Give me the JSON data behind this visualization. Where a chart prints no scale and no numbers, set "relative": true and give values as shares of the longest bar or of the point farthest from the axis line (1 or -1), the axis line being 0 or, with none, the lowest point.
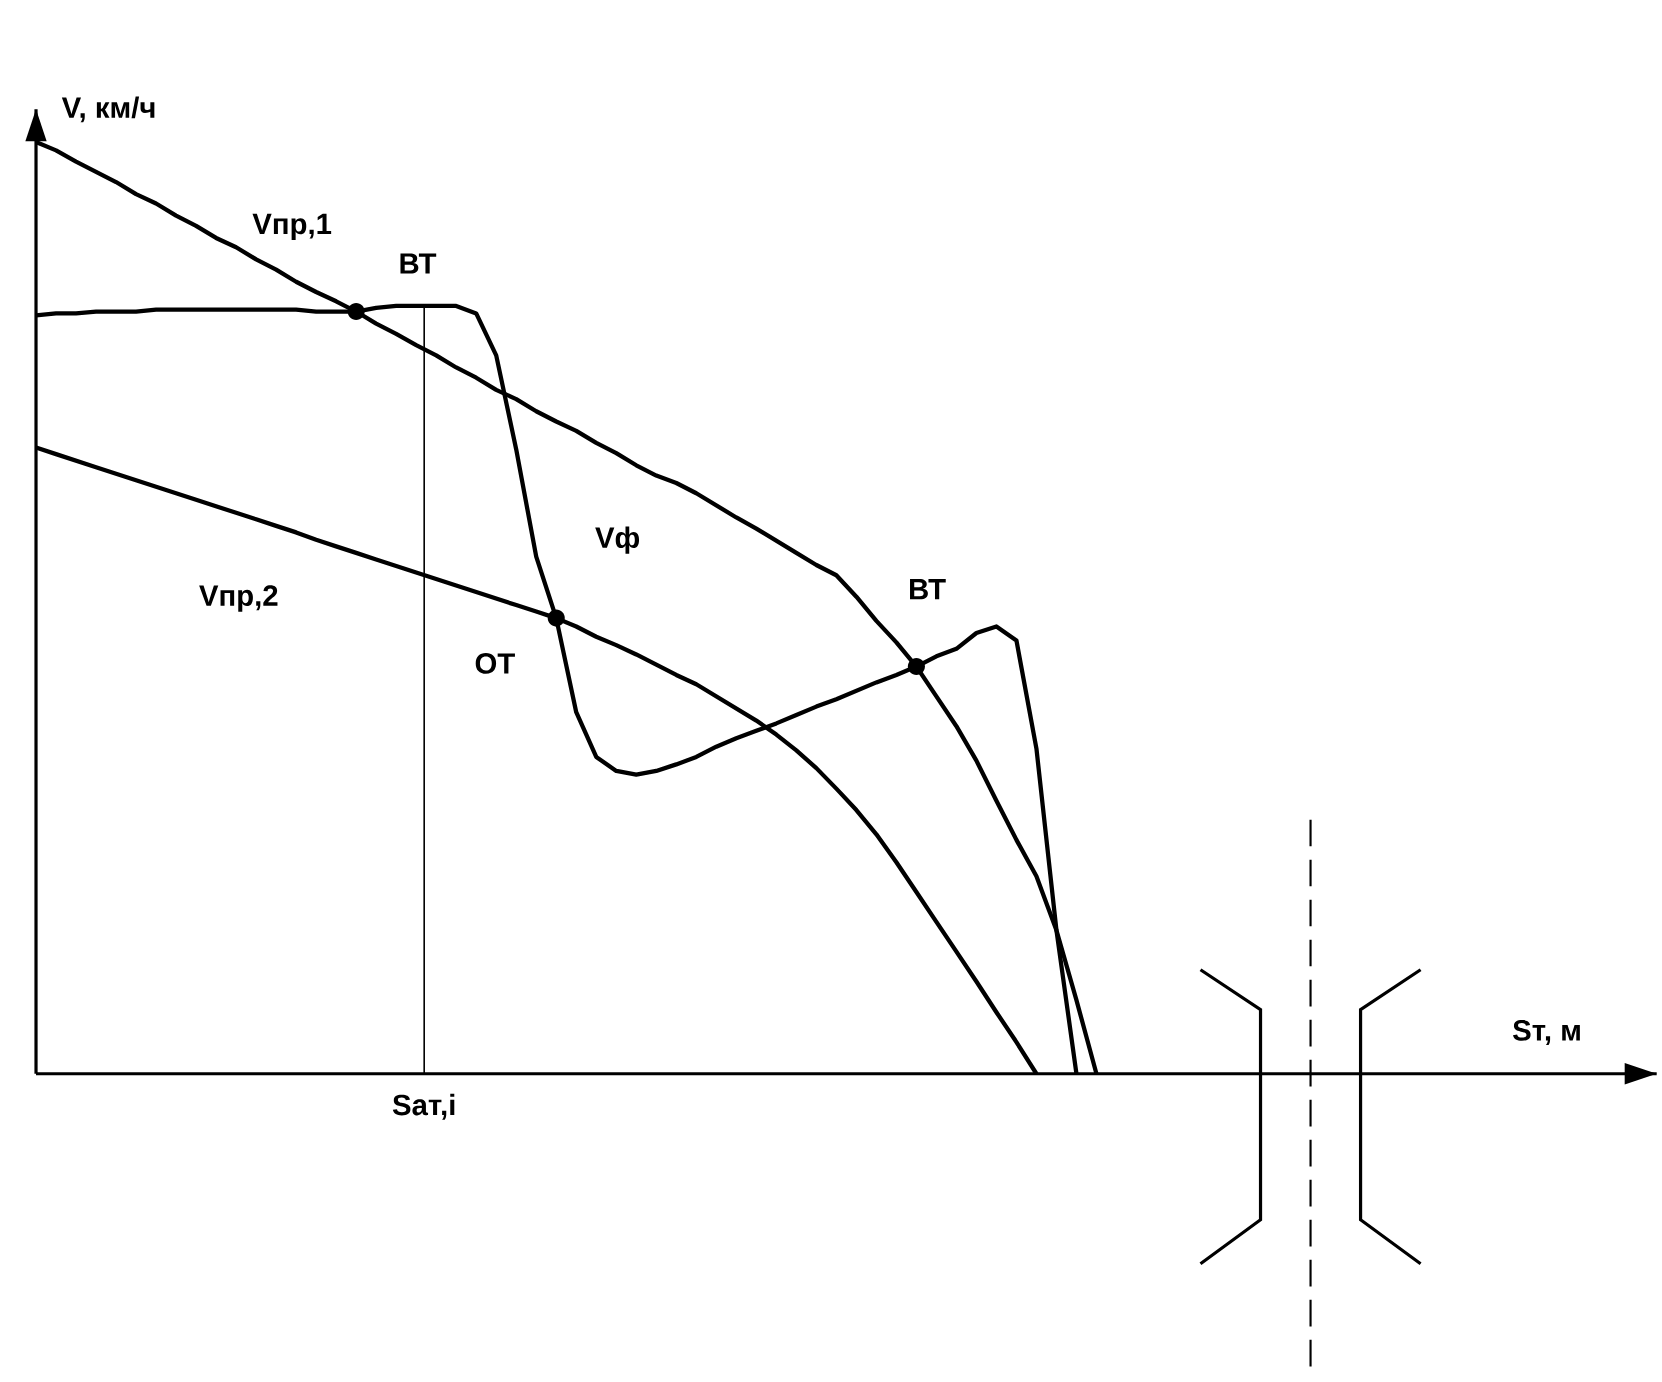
{
  "chart_data": {
    "type": "line",
    "relative": true,
    "xlabel": "Sт, м",
    "ylabel": "V, км/ч",
    "categories": [
      null,
      null,
      null,
      null,
      null,
      null,
      null,
      null,
      null,
      null,
      null,
      null,
      null,
      null,
      null,
      null,
      null,
      null,
      null,
      null,
      null,
      null,
      null,
      null,
      null,
      null,
      null,
      null,
      null,
      null,
      null,
      null,
      null,
      null,
      null,
      null,
      null,
      null,
      null,
      null,
      null,
      null,
      null,
      null,
      null,
      null,
      null,
      null,
      null,
      null,
      null,
      null,
      null,
      null,
      null,
      null,
      null,
      null,
      null,
      null,
      null,
      null,
      null,
      null,
      null,
      null,
      null,
      null,
      null,
      null,
      null,
      null,
      null,
      null,
      null,
      null,
      null,
      null,
      null,
      null,
      null,
      null
    ],
    "series": [
      {
        "name": "Vпр,1",
        "color": "#000000",
        "values": [
          1.0,
          0.991,
          0.979,
          0.968,
          0.957,
          0.944,
          0.934,
          0.921,
          0.91,
          0.897,
          0.887,
          0.874,
          0.863,
          0.85,
          0.839,
          0.829,
          0.818,
          0.805,
          0.794,
          0.782,
          0.771,
          0.758,
          0.747,
          0.734,
          0.724,
          0.711,
          0.7,
          0.69,
          0.677,
          0.666,
          0.653,
          0.642,
          0.634,
          0.623,
          0.61,
          0.597,
          0.585,
          0.572,
          0.559,
          0.546,
          0.535,
          0.512,
          0.486,
          0.463,
          0.437,
          0.405,
          0.373,
          0.336,
          0.293,
          0.251,
          0.212,
          0.154,
          0.079,
          0,
          null,
          null,
          null,
          null,
          null,
          null,
          null,
          null,
          null,
          null,
          null,
          null,
          null,
          null,
          null,
          null,
          null,
          null,
          null,
          null,
          null,
          null,
          null,
          null,
          null,
          null,
          null,
          null
        ]
      },
      {
        "name": "Vпр,2",
        "color": "#000000",
        "values": [
          0.672,
          0.665,
          0.658,
          0.651,
          0.644,
          0.637,
          0.63,
          0.623,
          0.616,
          0.609,
          0.602,
          0.595,
          0.588,
          0.581,
          0.573,
          0.566,
          0.559,
          0.552,
          0.545,
          0.538,
          0.531,
          0.524,
          0.517,
          0.51,
          0.503,
          0.496,
          0.489,
          0.48,
          0.469,
          0.46,
          0.45,
          0.439,
          0.428,
          0.418,
          0.405,
          0.392,
          0.379,
          0.364,
          0.347,
          0.328,
          0.306,
          0.283,
          0.257,
          0.227,
          0.195,
          0.163,
          0.131,
          0.099,
          0.066,
          0.034,
          0,
          null,
          null,
          null,
          null,
          null,
          null,
          null,
          null,
          null,
          null,
          null,
          null,
          null,
          null,
          null,
          null,
          null,
          null,
          null,
          null,
          null,
          null,
          null,
          null,
          null,
          null,
          null,
          null,
          null,
          null,
          null
        ]
      },
      {
        "name": "Vф",
        "color": "#000000",
        "values": [
          0.814,
          0.816,
          0.816,
          0.818,
          0.818,
          0.818,
          0.82,
          0.82,
          0.82,
          0.82,
          0.82,
          0.82,
          0.82,
          0.82,
          0.818,
          0.818,
          0.818,
          0.822,
          0.824,
          0.824,
          0.824,
          0.824,
          0.816,
          0.771,
          0.67,
          0.555,
          0.489,
          0.388,
          0.34,
          0.325,
          0.321,
          0.325,
          0.332,
          0.34,
          0.351,
          0.36,
          0.368,
          0.376,
          0.385,
          0.394,
          0.402,
          0.411,
          0.42,
          0.428,
          0.437,
          0.448,
          0.456,
          0.473,
          0.48,
          0.465,
          0.349,
          0.154,
          0,
          null,
          null,
          null,
          null,
          null,
          null,
          null,
          null,
          null,
          null,
          null,
          null,
          null,
          null,
          null,
          null,
          null,
          null,
          null,
          null,
          null,
          null,
          null,
          null,
          null,
          null,
          null,
          null,
          null
        ]
      }
    ],
    "annotations": [
      "ВТ",
      "ОТ",
      "ВТ",
      "Sат,i"
    ],
    "marker": "none",
    "line_style": "solid"
  }
}
